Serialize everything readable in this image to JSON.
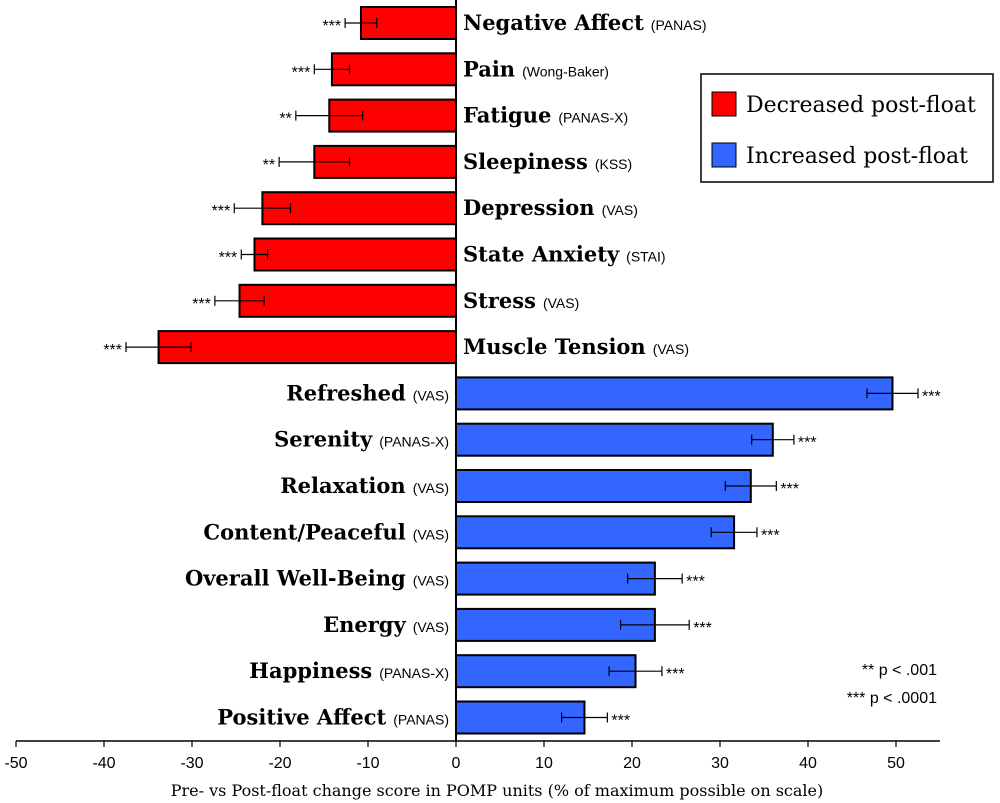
{
  "chart_data": {
    "type": "bar",
    "orientation": "horizontal",
    "title": "",
    "xlabel": "Pre- vs Post-float change score in POMP units (% of maximum possible on scale)",
    "xlim": [
      -50,
      55
    ],
    "xticks": [
      -50,
      -40,
      -30,
      -20,
      -10,
      0,
      10,
      20,
      30,
      40,
      50
    ],
    "bars": [
      {
        "name": "Negative Affect",
        "scale": "(PANAS)",
        "value": -10.8,
        "err": 1.8,
        "sig": "***"
      },
      {
        "name": "Pain",
        "scale": "(Wong-Baker)",
        "value": -14.1,
        "err": 2.0,
        "sig": "***"
      },
      {
        "name": "Fatigue",
        "scale": "(PANAS-X)",
        "value": -14.4,
        "err": 3.8,
        "sig": "**"
      },
      {
        "name": "Sleepiness",
        "scale": "(KSS)",
        "value": -16.1,
        "err": 4.0,
        "sig": "**"
      },
      {
        "name": "Depression",
        "scale": "(VAS)",
        "value": -22.0,
        "err": 3.2,
        "sig": "***"
      },
      {
        "name": "State Anxiety",
        "scale": "(STAI)",
        "value": -22.9,
        "err": 1.5,
        "sig": "***"
      },
      {
        "name": "Stress",
        "scale": "(VAS)",
        "value": -24.6,
        "err": 2.8,
        "sig": "***"
      },
      {
        "name": "Muscle Tension",
        "scale": "(VAS)",
        "value": -33.8,
        "err": 3.7,
        "sig": "***"
      },
      {
        "name": "Refreshed",
        "scale": "(VAS)",
        "value": 49.6,
        "err": 2.9,
        "sig": "***"
      },
      {
        "name": "Serenity",
        "scale": "(PANAS-X)",
        "value": 36.0,
        "err": 2.4,
        "sig": "***"
      },
      {
        "name": "Relaxation",
        "scale": "(VAS)",
        "value": 33.5,
        "err": 2.9,
        "sig": "***"
      },
      {
        "name": "Content/Peaceful",
        "scale": "(VAS)",
        "value": 31.6,
        "err": 2.6,
        "sig": "***"
      },
      {
        "name": "Overall Well-Being",
        "scale": "(VAS)",
        "value": 22.6,
        "err": 3.1,
        "sig": "***"
      },
      {
        "name": "Energy",
        "scale": "(VAS)",
        "value": 22.6,
        "err": 3.9,
        "sig": "***"
      },
      {
        "name": "Happiness",
        "scale": "(PANAS-X)",
        "value": 20.4,
        "err": 3.0,
        "sig": "***"
      },
      {
        "name": "Positive Affect",
        "scale": "(PANAS)",
        "value": 14.6,
        "err": 2.6,
        "sig": "***"
      }
    ],
    "legend": {
      "position": "top-right",
      "items": [
        {
          "label": "Decreased post-float",
          "color": "#ff0000"
        },
        {
          "label": "Increased post-float",
          "color": "#3366ff"
        }
      ]
    },
    "notes": [
      "** p < .001",
      "*** p < .0001"
    ]
  },
  "colors": {
    "negative": "#ff0000",
    "positive": "#3366ff",
    "axis": "#000000"
  }
}
